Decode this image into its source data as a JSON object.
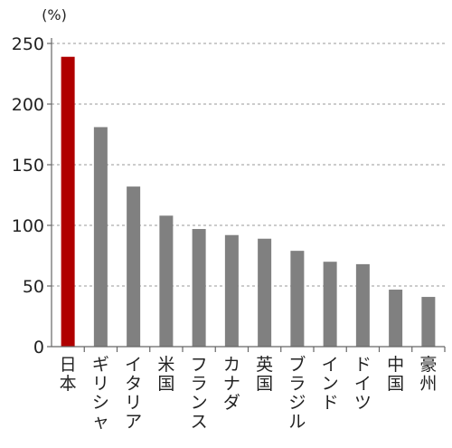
{
  "chart_data": {
    "type": "bar",
    "unit_label": "(%)",
    "categories": [
      "日本",
      "ギリシャ",
      "イタリア",
      "米国",
      "フランス",
      "カナダ",
      "英国",
      "ブラジル",
      "インド",
      "ドイツ",
      "中国",
      "豪州"
    ],
    "values": [
      239,
      181,
      132,
      108,
      97,
      92,
      89,
      79,
      70,
      68,
      47,
      41
    ],
    "ylim": [
      0,
      250
    ],
    "yticks": [
      0,
      50,
      100,
      150,
      200,
      250
    ],
    "grid": true,
    "colors": {
      "highlight": "#b00000",
      "default": "#808080",
      "grid": "#999999",
      "axis": "#666666"
    },
    "highlight_index": 0
  }
}
